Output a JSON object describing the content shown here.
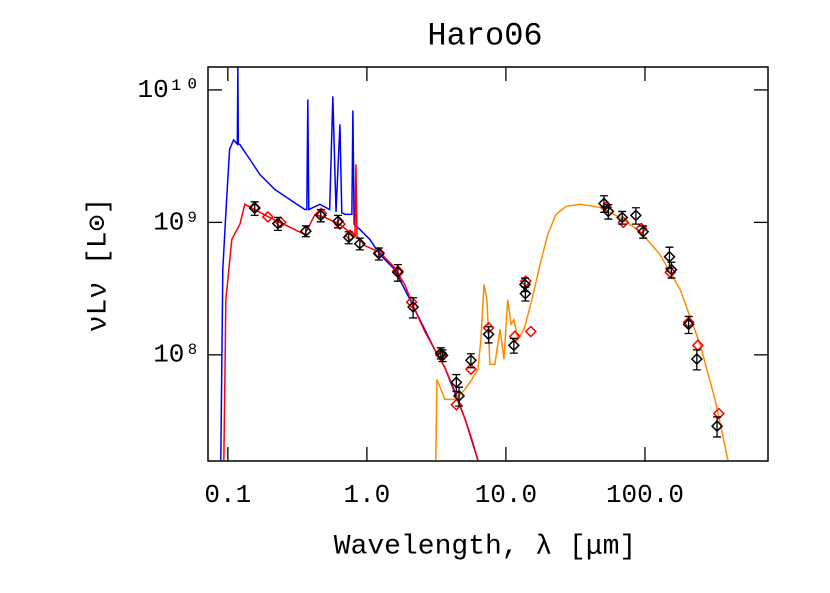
{
  "chart_data": {
    "type": "line",
    "title": "Haro06",
    "xlabel": "Wavelength, λ [μm]",
    "ylabel": "νLν [L⊙]",
    "xscale": "log",
    "yscale": "log",
    "xlim": [
      0.072,
      767
    ],
    "ylim": [
      15800000.0,
      14900000000.0
    ],
    "xticks": [
      0.1,
      {
        "value": 1,
        "label": "1.0"
      },
      {
        "value": 10,
        "label": "10.0"
      },
      {
        "value": 100,
        "label": "100.0"
      }
    ],
    "yticks": [
      {
        "value": 100000000.0,
        "label": "10⁸"
      },
      {
        "value": 1000000000.0,
        "label": "10⁹"
      },
      {
        "value": 10000000000.0,
        "label": "10¹⁰"
      }
    ],
    "series": [
      {
        "kind": "line",
        "color": "#0000ff",
        "x": [
          0.089,
          0.092,
          0.098,
          0.103,
          0.11,
          0.117,
          0.118,
          0.119,
          0.122,
          0.144,
          0.17,
          0.218,
          0.279,
          0.358,
          0.37,
          0.376,
          0.382,
          0.459,
          0.54,
          0.569,
          0.6,
          0.64,
          0.66,
          0.7,
          0.78,
          0.793,
          0.81,
          0.89,
          1.05,
          1.24,
          1.58,
          2.04,
          2.61,
          3.07,
          3.64,
          5.07,
          6.29
        ],
        "values": [
          16000000.0,
          442000000.0,
          1490000000.0,
          3560000000.0,
          4200000000.0,
          3900000000.0,
          14900000000.0,
          3900000000.0,
          3870000000.0,
          2990000000.0,
          2300000000.0,
          1770000000.0,
          1490000000.0,
          1250000000.0,
          1250000000.0,
          8460000000.0,
          1250000000.0,
          1370000000.0,
          1250000000.0,
          8930000000.0,
          1200000000.0,
          5500000000.0,
          1180000000.0,
          1150000000.0,
          1150000000.0,
          7000000000.0,
          966000000.0,
          885000000.0,
          744000000.0,
          573000000.0,
          442000000.0,
          262000000.0,
          155000000.0,
          110000000.0,
          80000000.0,
          33000000.0,
          16000000.0
        ]
      },
      {
        "kind": "line",
        "color": "#ff0000",
        "x": [
          0.0936,
          0.0968,
          0.1017,
          0.1068,
          0.122,
          0.1325,
          0.156,
          0.2,
          0.279,
          0.358,
          0.423,
          0.5,
          0.64,
          0.82,
          0.834,
          0.849,
          0.96,
          1.24,
          1.58,
          1.87,
          2.21,
          2.61,
          3.07,
          3.64,
          4.3,
          5.07,
          5.69,
          6.29
        ],
        "values": [
          16000000.0,
          262000000.0,
          442000000.0,
          744000000.0,
          966000000.0,
          1370000000.0,
          1250000000.0,
          1090000000.0,
          920000000.0,
          810000000.0,
          1150000000.0,
          1090000000.0,
          966000000.0,
          784000000.0,
          2740000000.0,
          784000000.0,
          670000000.0,
          594000000.0,
          457000000.0,
          340000000.0,
          220000000.0,
          150000000.0,
          110000000.0,
          80000000.0,
          53000000.0,
          33000000.0,
          23000000.0,
          16000000.0
        ]
      },
      {
        "kind": "line",
        "color": "#ff8c00",
        "x": [
          3.13,
          3.19,
          3.64,
          4.3,
          5.07,
          5.69,
          6.29,
          6.61,
          6.95,
          7.3,
          7.67,
          8.33,
          9.06,
          9.68,
          10.3,
          10.9,
          11.4,
          12.2,
          13.5,
          15.4,
          17.6,
          20.0,
          22.9,
          27.0,
          34.1,
          47.4,
          66.1,
          92.0,
          128,
          179,
          249,
          319,
          395
        ],
        "values": [
          16000000.0,
          65300000.0,
          46100000.0,
          46100000.0,
          54900000.0,
          65300000.0,
          77800000.0,
          131000000.0,
          340000000.0,
          262000000.0,
          84800000.0,
          84800000.0,
          156000000.0,
          92500000.0,
          262000000.0,
          170000000.0,
          185000000.0,
          131000000.0,
          156000000.0,
          262000000.0,
          482000000.0,
          811000000.0,
          1150000000.0,
          1320000000.0,
          1370000000.0,
          1300000000.0,
          1090000000.0,
          856000000.0,
          573000000.0,
          312000000.0,
          120000000.0,
          46100000.0,
          16000000.0
        ]
      },
      {
        "kind": "points",
        "color": "#ff0000",
        "x": [
          0.156,
          0.194,
          0.24,
          0.47,
          0.64,
          0.76,
          1.22,
          1.67,
          2.1,
          3.4,
          4.4,
          5.6,
          7.5,
          11.6,
          13.9,
          15.1,
          52.6,
          70,
          94,
          152,
          206,
          240,
          340
        ],
        "values": [
          1300000000.0,
          1100000000.0,
          1000000000.0,
          1170000000.0,
          970000000.0,
          800000000.0,
          590000000.0,
          430000000.0,
          250000000.0,
          100000000.0,
          42000000.0,
          78000000.0,
          160000000.0,
          138000000.0,
          360000000.0,
          150000000.0,
          1300000000.0,
          1000000000.0,
          900000000.0,
          420000000.0,
          176000000.0,
          118000000.0,
          36000000.0
        ]
      },
      {
        "kind": "points",
        "color": "#000000",
        "x": [
          0.156,
          0.229,
          0.364,
          0.466,
          0.62,
          0.74,
          0.89,
          1.22,
          1.67,
          2.15,
          3.4,
          3.5,
          4.4,
          4.6,
          5.6,
          7.5,
          11.4,
          13.7,
          13.8,
          50.7,
          54.5,
          68.6,
          86,
          97,
          150,
          155,
          206,
          236,
          330
        ],
        "values": [
          1280000000.0,
          980000000.0,
          860000000.0,
          1130000000.0,
          1020000000.0,
          770000000.0,
          690000000.0,
          580000000.0,
          420000000.0,
          230000000.0,
          103000000.0,
          99000000.0,
          62000000.0,
          49000000.0,
          91000000.0,
          143000000.0,
          118000000.0,
          340000000.0,
          290000000.0,
          1390000000.0,
          1210000000.0,
          1090000000.0,
          1130000000.0,
          850000000.0,
          550000000.0,
          440000000.0,
          170000000.0,
          93000000.0,
          29000000.0
        ],
        "errors": [
          150000000.0,
          110000000.0,
          80000000.0,
          120000000.0,
          110000000.0,
          80000000.0,
          70000000.0,
          60000000.0,
          60000000.0,
          40000000.0,
          10000000.0,
          10000000.0,
          9000000.0,
          8000000.0,
          11000000.0,
          20000000.0,
          15000000.0,
          40000000.0,
          35000000.0,
          200000000.0,
          150000000.0,
          120000000.0,
          160000000.0,
          90000000.0,
          100000000.0,
          60000000.0,
          25000000.0,
          16000000.0,
          5000000.0
        ]
      }
    ]
  }
}
